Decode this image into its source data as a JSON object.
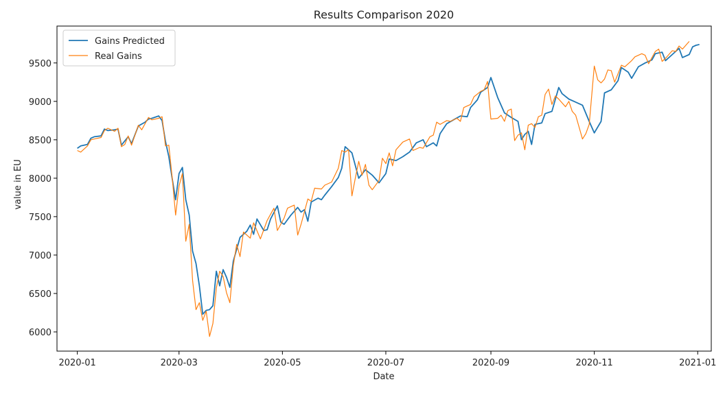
{
  "chart_data": {
    "type": "line",
    "title": "Results Comparison 2020",
    "xlabel": "Date",
    "ylabel": "value in EU",
    "xlim": [
      "2019-12-20",
      "2021-01-09"
    ],
    "ylim": [
      5750,
      9980
    ],
    "x_ticks": [
      "2020-01-01",
      "2020-03-01",
      "2020-05-01",
      "2020-07-01",
      "2020-09-01",
      "2020-11-01",
      "2021-01-01"
    ],
    "x_tick_labels": [
      "2020-01",
      "2020-03",
      "2020-05",
      "2020-07",
      "2020-09",
      "2020-11",
      "2021-01"
    ],
    "y_ticks": [
      6000,
      6500,
      7000,
      7500,
      8000,
      8500,
      9000,
      9500
    ],
    "y_tick_labels": [
      "6000",
      "6500",
      "7000",
      "7500",
      "8000",
      "8500",
      "9000",
      "9500"
    ],
    "legend_position": "top-left",
    "grid": false,
    "series": [
      {
        "name": "Gains Predicted",
        "color": "#1f77b4",
        "points": [
          [
            "2020-01-01",
            8390
          ],
          [
            "2020-01-03",
            8420
          ],
          [
            "2020-01-07",
            8440
          ],
          [
            "2020-01-09",
            8520
          ],
          [
            "2020-01-11",
            8540
          ],
          [
            "2020-01-15",
            8550
          ],
          [
            "2020-01-17",
            8640
          ],
          [
            "2020-01-19",
            8620
          ],
          [
            "2020-01-23",
            8630
          ],
          [
            "2020-01-25",
            8640
          ],
          [
            "2020-01-27",
            8430
          ],
          [
            "2020-01-31",
            8540
          ],
          [
            "2020-02-02",
            8450
          ],
          [
            "2020-02-06",
            8680
          ],
          [
            "2020-02-10",
            8730
          ],
          [
            "2020-02-12",
            8770
          ],
          [
            "2020-02-14",
            8780
          ],
          [
            "2020-02-18",
            8810
          ],
          [
            "2020-02-20",
            8750
          ],
          [
            "2020-02-22",
            8480
          ],
          [
            "2020-02-24",
            8280
          ],
          [
            "2020-02-26",
            7990
          ],
          [
            "2020-02-28",
            7720
          ],
          [
            "2020-03-01",
            8060
          ],
          [
            "2020-03-03",
            8140
          ],
          [
            "2020-03-05",
            7720
          ],
          [
            "2020-03-07",
            7520
          ],
          [
            "2020-03-09",
            7050
          ],
          [
            "2020-03-11",
            6890
          ],
          [
            "2020-03-13",
            6600
          ],
          [
            "2020-03-15",
            6230
          ],
          [
            "2020-03-17",
            6280
          ],
          [
            "2020-03-19",
            6290
          ],
          [
            "2020-03-21",
            6340
          ],
          [
            "2020-03-23",
            6790
          ],
          [
            "2020-03-25",
            6600
          ],
          [
            "2020-03-27",
            6810
          ],
          [
            "2020-03-29",
            6710
          ],
          [
            "2020-03-31",
            6580
          ],
          [
            "2020-04-02",
            6920
          ],
          [
            "2020-04-06",
            7230
          ],
          [
            "2020-04-10",
            7310
          ],
          [
            "2020-04-12",
            7390
          ],
          [
            "2020-04-14",
            7270
          ],
          [
            "2020-04-16",
            7470
          ],
          [
            "2020-04-20",
            7320
          ],
          [
            "2020-04-22",
            7330
          ],
          [
            "2020-04-24",
            7470
          ],
          [
            "2020-04-28",
            7640
          ],
          [
            "2020-04-30",
            7430
          ],
          [
            "2020-05-02",
            7400
          ],
          [
            "2020-05-06",
            7520
          ],
          [
            "2020-05-10",
            7620
          ],
          [
            "2020-05-12",
            7560
          ],
          [
            "2020-05-14",
            7590
          ],
          [
            "2020-05-16",
            7440
          ],
          [
            "2020-05-18",
            7690
          ],
          [
            "2020-05-22",
            7740
          ],
          [
            "2020-05-24",
            7720
          ],
          [
            "2020-05-26",
            7780
          ],
          [
            "2020-05-30",
            7890
          ],
          [
            "2020-06-03",
            8010
          ],
          [
            "2020-06-05",
            8130
          ],
          [
            "2020-06-07",
            8410
          ],
          [
            "2020-06-11",
            8330
          ],
          [
            "2020-06-15",
            8000
          ],
          [
            "2020-06-19",
            8110
          ],
          [
            "2020-06-23",
            8040
          ],
          [
            "2020-06-27",
            7940
          ],
          [
            "2020-07-01",
            8060
          ],
          [
            "2020-07-03",
            8250
          ],
          [
            "2020-07-07",
            8230
          ],
          [
            "2020-07-11",
            8280
          ],
          [
            "2020-07-15",
            8340
          ],
          [
            "2020-07-19",
            8460
          ],
          [
            "2020-07-23",
            8500
          ],
          [
            "2020-07-25",
            8410
          ],
          [
            "2020-07-29",
            8460
          ],
          [
            "2020-07-31",
            8420
          ],
          [
            "2020-08-02",
            8580
          ],
          [
            "2020-08-06",
            8710
          ],
          [
            "2020-08-10",
            8760
          ],
          [
            "2020-08-14",
            8810
          ],
          [
            "2020-08-18",
            8800
          ],
          [
            "2020-08-20",
            8920
          ],
          [
            "2020-08-24",
            9020
          ],
          [
            "2020-08-26",
            9120
          ],
          [
            "2020-08-30",
            9180
          ],
          [
            "2020-09-01",
            9310
          ],
          [
            "2020-09-05",
            9050
          ],
          [
            "2020-09-09",
            8850
          ],
          [
            "2020-09-13",
            8790
          ],
          [
            "2020-09-17",
            8740
          ],
          [
            "2020-09-19",
            8500
          ],
          [
            "2020-09-21",
            8570
          ],
          [
            "2020-09-23",
            8610
          ],
          [
            "2020-09-25",
            8440
          ],
          [
            "2020-09-27",
            8700
          ],
          [
            "2020-10-01",
            8720
          ],
          [
            "2020-10-03",
            8840
          ],
          [
            "2020-10-07",
            8870
          ],
          [
            "2020-10-11",
            9180
          ],
          [
            "2020-10-13",
            9100
          ],
          [
            "2020-10-17",
            9030
          ],
          [
            "2020-10-21",
            8990
          ],
          [
            "2020-10-25",
            8950
          ],
          [
            "2020-10-29",
            8740
          ],
          [
            "2020-11-01",
            8590
          ],
          [
            "2020-11-05",
            8740
          ],
          [
            "2020-11-07",
            9110
          ],
          [
            "2020-11-11",
            9150
          ],
          [
            "2020-11-15",
            9270
          ],
          [
            "2020-11-17",
            9440
          ],
          [
            "2020-11-21",
            9380
          ],
          [
            "2020-11-23",
            9300
          ],
          [
            "2020-11-27",
            9450
          ],
          [
            "2020-12-01",
            9500
          ],
          [
            "2020-12-05",
            9540
          ],
          [
            "2020-12-07",
            9620
          ],
          [
            "2020-12-11",
            9640
          ],
          [
            "2020-12-13",
            9530
          ],
          [
            "2020-12-17",
            9610
          ],
          [
            "2020-12-21",
            9690
          ],
          [
            "2020-12-23",
            9570
          ],
          [
            "2020-12-27",
            9610
          ],
          [
            "2020-12-29",
            9710
          ],
          [
            "2020-12-31",
            9730
          ],
          [
            "2021-01-02",
            9740
          ]
        ]
      },
      {
        "name": "Real Gains",
        "color": "#ff7f0e",
        "points": [
          [
            "2020-01-01",
            8360
          ],
          [
            "2020-01-03",
            8340
          ],
          [
            "2020-01-07",
            8420
          ],
          [
            "2020-01-09",
            8500
          ],
          [
            "2020-01-11",
            8510
          ],
          [
            "2020-01-15",
            8530
          ],
          [
            "2020-01-17",
            8620
          ],
          [
            "2020-01-19",
            8650
          ],
          [
            "2020-01-23",
            8610
          ],
          [
            "2020-01-25",
            8650
          ],
          [
            "2020-01-27",
            8410
          ],
          [
            "2020-01-29",
            8440
          ],
          [
            "2020-01-31",
            8550
          ],
          [
            "2020-02-02",
            8430
          ],
          [
            "2020-02-06",
            8690
          ],
          [
            "2020-02-08",
            8630
          ],
          [
            "2020-02-12",
            8790
          ],
          [
            "2020-02-14",
            8760
          ],
          [
            "2020-02-18",
            8780
          ],
          [
            "2020-02-20",
            8800
          ],
          [
            "2020-02-22",
            8420
          ],
          [
            "2020-02-24",
            8430
          ],
          [
            "2020-02-26",
            8000
          ],
          [
            "2020-02-28",
            7520
          ],
          [
            "2020-03-01",
            7900
          ],
          [
            "2020-03-03",
            8060
          ],
          [
            "2020-03-05",
            7180
          ],
          [
            "2020-03-07",
            7400
          ],
          [
            "2020-03-09",
            6670
          ],
          [
            "2020-03-11",
            6290
          ],
          [
            "2020-03-13",
            6380
          ],
          [
            "2020-03-15",
            6150
          ],
          [
            "2020-03-17",
            6270
          ],
          [
            "2020-03-19",
            5940
          ],
          [
            "2020-03-21",
            6110
          ],
          [
            "2020-03-23",
            6570
          ],
          [
            "2020-03-25",
            6790
          ],
          [
            "2020-03-27",
            6720
          ],
          [
            "2020-03-29",
            6510
          ],
          [
            "2020-03-31",
            6380
          ],
          [
            "2020-04-02",
            6860
          ],
          [
            "2020-04-04",
            7140
          ],
          [
            "2020-04-06",
            6980
          ],
          [
            "2020-04-08",
            7300
          ],
          [
            "2020-04-12",
            7220
          ],
          [
            "2020-04-14",
            7420
          ],
          [
            "2020-04-18",
            7210
          ],
          [
            "2020-04-20",
            7330
          ],
          [
            "2020-04-22",
            7450
          ],
          [
            "2020-04-26",
            7610
          ],
          [
            "2020-04-28",
            7320
          ],
          [
            "2020-05-02",
            7480
          ],
          [
            "2020-05-04",
            7610
          ],
          [
            "2020-05-08",
            7650
          ],
          [
            "2020-05-10",
            7260
          ],
          [
            "2020-05-12",
            7400
          ],
          [
            "2020-05-16",
            7730
          ],
          [
            "2020-05-18",
            7700
          ],
          [
            "2020-05-20",
            7870
          ],
          [
            "2020-05-24",
            7860
          ],
          [
            "2020-05-26",
            7910
          ],
          [
            "2020-05-30",
            7950
          ],
          [
            "2020-06-03",
            8130
          ],
          [
            "2020-06-05",
            8360
          ],
          [
            "2020-06-07",
            8340
          ],
          [
            "2020-06-09",
            8370
          ],
          [
            "2020-06-11",
            7770
          ],
          [
            "2020-06-13",
            8000
          ],
          [
            "2020-06-15",
            8220
          ],
          [
            "2020-06-17",
            8040
          ],
          [
            "2020-06-19",
            8180
          ],
          [
            "2020-06-21",
            7910
          ],
          [
            "2020-06-23",
            7850
          ],
          [
            "2020-06-27",
            7970
          ],
          [
            "2020-06-29",
            8260
          ],
          [
            "2020-07-01",
            8190
          ],
          [
            "2020-07-03",
            8330
          ],
          [
            "2020-07-05",
            8160
          ],
          [
            "2020-07-07",
            8370
          ],
          [
            "2020-07-11",
            8470
          ],
          [
            "2020-07-15",
            8510
          ],
          [
            "2020-07-17",
            8360
          ],
          [
            "2020-07-21",
            8400
          ],
          [
            "2020-07-23",
            8390
          ],
          [
            "2020-07-27",
            8540
          ],
          [
            "2020-07-29",
            8560
          ],
          [
            "2020-07-31",
            8730
          ],
          [
            "2020-08-02",
            8700
          ],
          [
            "2020-08-06",
            8750
          ],
          [
            "2020-08-08",
            8740
          ],
          [
            "2020-08-12",
            8780
          ],
          [
            "2020-08-14",
            8740
          ],
          [
            "2020-08-16",
            8920
          ],
          [
            "2020-08-20",
            8960
          ],
          [
            "2020-08-22",
            9060
          ],
          [
            "2020-08-26",
            9130
          ],
          [
            "2020-08-28",
            9150
          ],
          [
            "2020-08-30",
            9260
          ],
          [
            "2020-09-01",
            8770
          ],
          [
            "2020-09-05",
            8780
          ],
          [
            "2020-09-07",
            8820
          ],
          [
            "2020-09-09",
            8740
          ],
          [
            "2020-09-11",
            8880
          ],
          [
            "2020-09-13",
            8900
          ],
          [
            "2020-09-15",
            8490
          ],
          [
            "2020-09-17",
            8560
          ],
          [
            "2020-09-19",
            8590
          ],
          [
            "2020-09-21",
            8370
          ],
          [
            "2020-09-23",
            8690
          ],
          [
            "2020-09-25",
            8710
          ],
          [
            "2020-09-27",
            8660
          ],
          [
            "2020-09-29",
            8800
          ],
          [
            "2020-10-01",
            8820
          ],
          [
            "2020-10-03",
            9090
          ],
          [
            "2020-10-05",
            9160
          ],
          [
            "2020-10-07",
            8960
          ],
          [
            "2020-10-09",
            9070
          ],
          [
            "2020-10-11",
            9030
          ],
          [
            "2020-10-15",
            8930
          ],
          [
            "2020-10-17",
            9000
          ],
          [
            "2020-10-19",
            8870
          ],
          [
            "2020-10-21",
            8820
          ],
          [
            "2020-10-25",
            8510
          ],
          [
            "2020-10-27",
            8580
          ],
          [
            "2020-10-29",
            8700
          ],
          [
            "2020-11-01",
            9460
          ],
          [
            "2020-11-03",
            9280
          ],
          [
            "2020-11-05",
            9240
          ],
          [
            "2020-11-07",
            9290
          ],
          [
            "2020-11-09",
            9410
          ],
          [
            "2020-11-11",
            9400
          ],
          [
            "2020-11-13",
            9250
          ],
          [
            "2020-11-17",
            9470
          ],
          [
            "2020-11-19",
            9450
          ],
          [
            "2020-11-23",
            9530
          ],
          [
            "2020-11-25",
            9580
          ],
          [
            "2020-11-29",
            9620
          ],
          [
            "2020-12-01",
            9600
          ],
          [
            "2020-12-03",
            9490
          ],
          [
            "2020-12-07",
            9650
          ],
          [
            "2020-12-09",
            9680
          ],
          [
            "2020-12-11",
            9520
          ],
          [
            "2020-12-13",
            9560
          ],
          [
            "2020-12-17",
            9660
          ],
          [
            "2020-12-19",
            9650
          ],
          [
            "2020-12-21",
            9720
          ],
          [
            "2020-12-23",
            9680
          ],
          [
            "2020-12-27",
            9780
          ]
        ]
      }
    ]
  }
}
